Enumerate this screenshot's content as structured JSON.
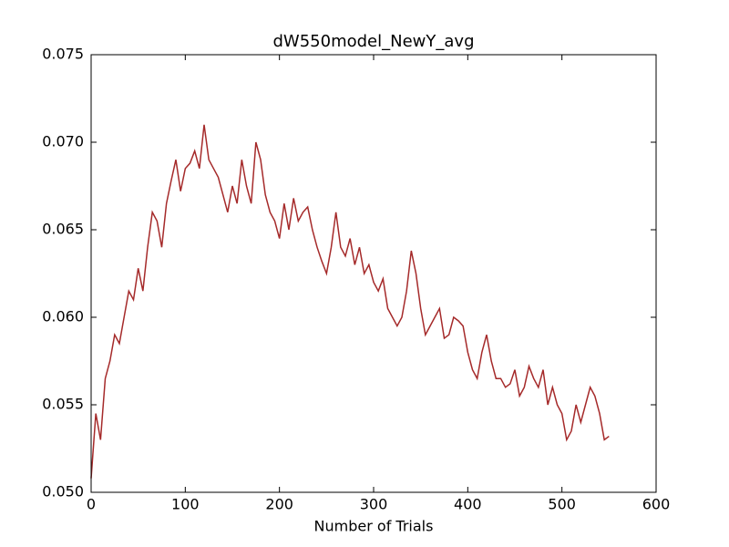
{
  "chart_data": {
    "type": "line",
    "title": "dW550model_NewY_avg",
    "xlabel": "Number of Trials",
    "x": [
      0,
      5,
      10,
      15,
      20,
      25,
      30,
      35,
      40,
      45,
      50,
      55,
      60,
      65,
      70,
      75,
      80,
      85,
      90,
      95,
      100,
      105,
      110,
      115,
      120,
      125,
      130,
      135,
      140,
      145,
      150,
      155,
      160,
      165,
      170,
      175,
      180,
      185,
      190,
      195,
      200,
      205,
      210,
      215,
      220,
      225,
      230,
      235,
      240,
      245,
      250,
      255,
      260,
      265,
      270,
      275,
      280,
      285,
      290,
      295,
      300,
      305,
      310,
      315,
      320,
      325,
      330,
      335,
      340,
      345,
      350,
      355,
      360,
      365,
      370,
      375,
      380,
      385,
      390,
      395,
      400,
      405,
      410,
      415,
      420,
      425,
      430,
      435,
      440,
      445,
      450,
      455,
      460,
      465,
      470,
      475,
      480,
      485,
      490,
      495,
      500,
      505,
      510,
      515,
      520,
      525,
      530,
      535,
      540,
      545,
      550
    ],
    "series": [
      {
        "color": "#a52a2a",
        "values": [
          0.0508,
          0.0545,
          0.053,
          0.0565,
          0.0575,
          0.059,
          0.0585,
          0.06,
          0.0615,
          0.061,
          0.0628,
          0.0615,
          0.064,
          0.066,
          0.0655,
          0.064,
          0.0665,
          0.0678,
          0.069,
          0.0672,
          0.0685,
          0.0688,
          0.0695,
          0.0685,
          0.071,
          0.069,
          0.0685,
          0.068,
          0.067,
          0.066,
          0.0675,
          0.0665,
          0.069,
          0.0675,
          0.0665,
          0.07,
          0.069,
          0.067,
          0.066,
          0.0655,
          0.0645,
          0.0665,
          0.065,
          0.0668,
          0.0655,
          0.066,
          0.0663,
          0.065,
          0.064,
          0.0632,
          0.0625,
          0.064,
          0.066,
          0.064,
          0.0635,
          0.0645,
          0.063,
          0.064,
          0.0625,
          0.063,
          0.062,
          0.0615,
          0.0622,
          0.0605,
          0.06,
          0.0595,
          0.06,
          0.0615,
          0.0638,
          0.0625,
          0.0605,
          0.059,
          0.0595,
          0.06,
          0.0605,
          0.0588,
          0.059,
          0.06,
          0.0598,
          0.0595,
          0.058,
          0.057,
          0.0565,
          0.058,
          0.059,
          0.0575,
          0.0565,
          0.0565,
          0.056,
          0.0562,
          0.057,
          0.0555,
          0.056,
          0.0572,
          0.0565,
          0.056,
          0.057,
          0.055,
          0.056,
          0.055,
          0.0545,
          0.053,
          0.0535,
          0.055,
          0.054,
          0.055,
          0.056,
          0.0555,
          0.0545,
          0.053,
          0.0532
        ]
      }
    ],
    "xlim": [
      0,
      600
    ],
    "xticks": [
      0,
      100,
      200,
      300,
      400,
      500,
      600
    ],
    "ylim": [
      0.05,
      0.075
    ],
    "yticks": [
      {
        "value": 0.05,
        "label": "0.050"
      },
      {
        "value": 0.055,
        "label": "0.055"
      },
      {
        "value": 0.06,
        "label": "0.060"
      },
      {
        "value": 0.065,
        "label": "0.065"
      },
      {
        "value": 0.07,
        "label": "0.070"
      },
      {
        "value": 0.075,
        "label": "0.075"
      }
    ]
  }
}
